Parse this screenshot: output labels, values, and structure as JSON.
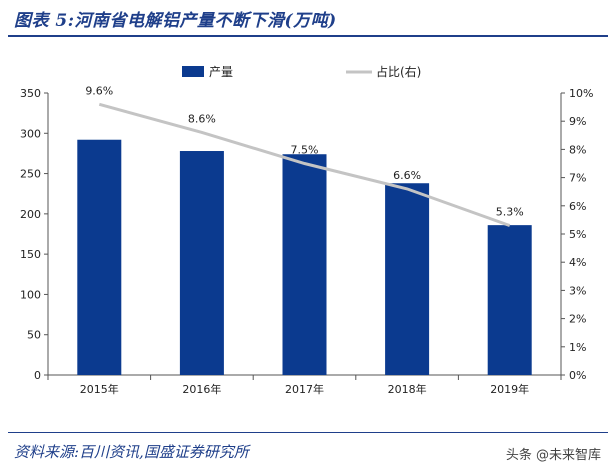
{
  "header": {
    "title": "图表 5:河南省电解铝产量不断下滑(万吨)"
  },
  "footer": {
    "source": "资料来源:百川资讯,国盛证券研究所",
    "watermark": "头条 @未来智库"
  },
  "colors": {
    "bar": "#0b3a8f",
    "line": "#c4c4c4",
    "brand": "#1f3f8a"
  },
  "chart_data": {
    "type": "bar",
    "categories": [
      "2015年",
      "2016年",
      "2017年",
      "2018年",
      "2019年"
    ],
    "series": [
      {
        "name": "产量",
        "type": "bar",
        "axis": "left",
        "values": [
          292,
          278,
          274,
          238,
          186
        ]
      },
      {
        "name": "占比(右)",
        "type": "line",
        "axis": "right",
        "values": [
          9.6,
          8.6,
          7.5,
          6.6,
          5.3
        ],
        "labels": [
          "9.6%",
          "8.6%",
          "7.5%",
          "6.6%",
          "5.3%"
        ]
      }
    ],
    "ylim": [
      0,
      350
    ],
    "yticks": [
      0,
      50,
      100,
      150,
      200,
      250,
      300,
      350
    ],
    "y2lim": [
      0,
      10
    ],
    "y2ticks": [
      "0%",
      "1%",
      "2%",
      "3%",
      "4%",
      "5%",
      "6%",
      "7%",
      "8%",
      "9%",
      "10%"
    ],
    "legend": "top-center",
    "grid": false
  }
}
